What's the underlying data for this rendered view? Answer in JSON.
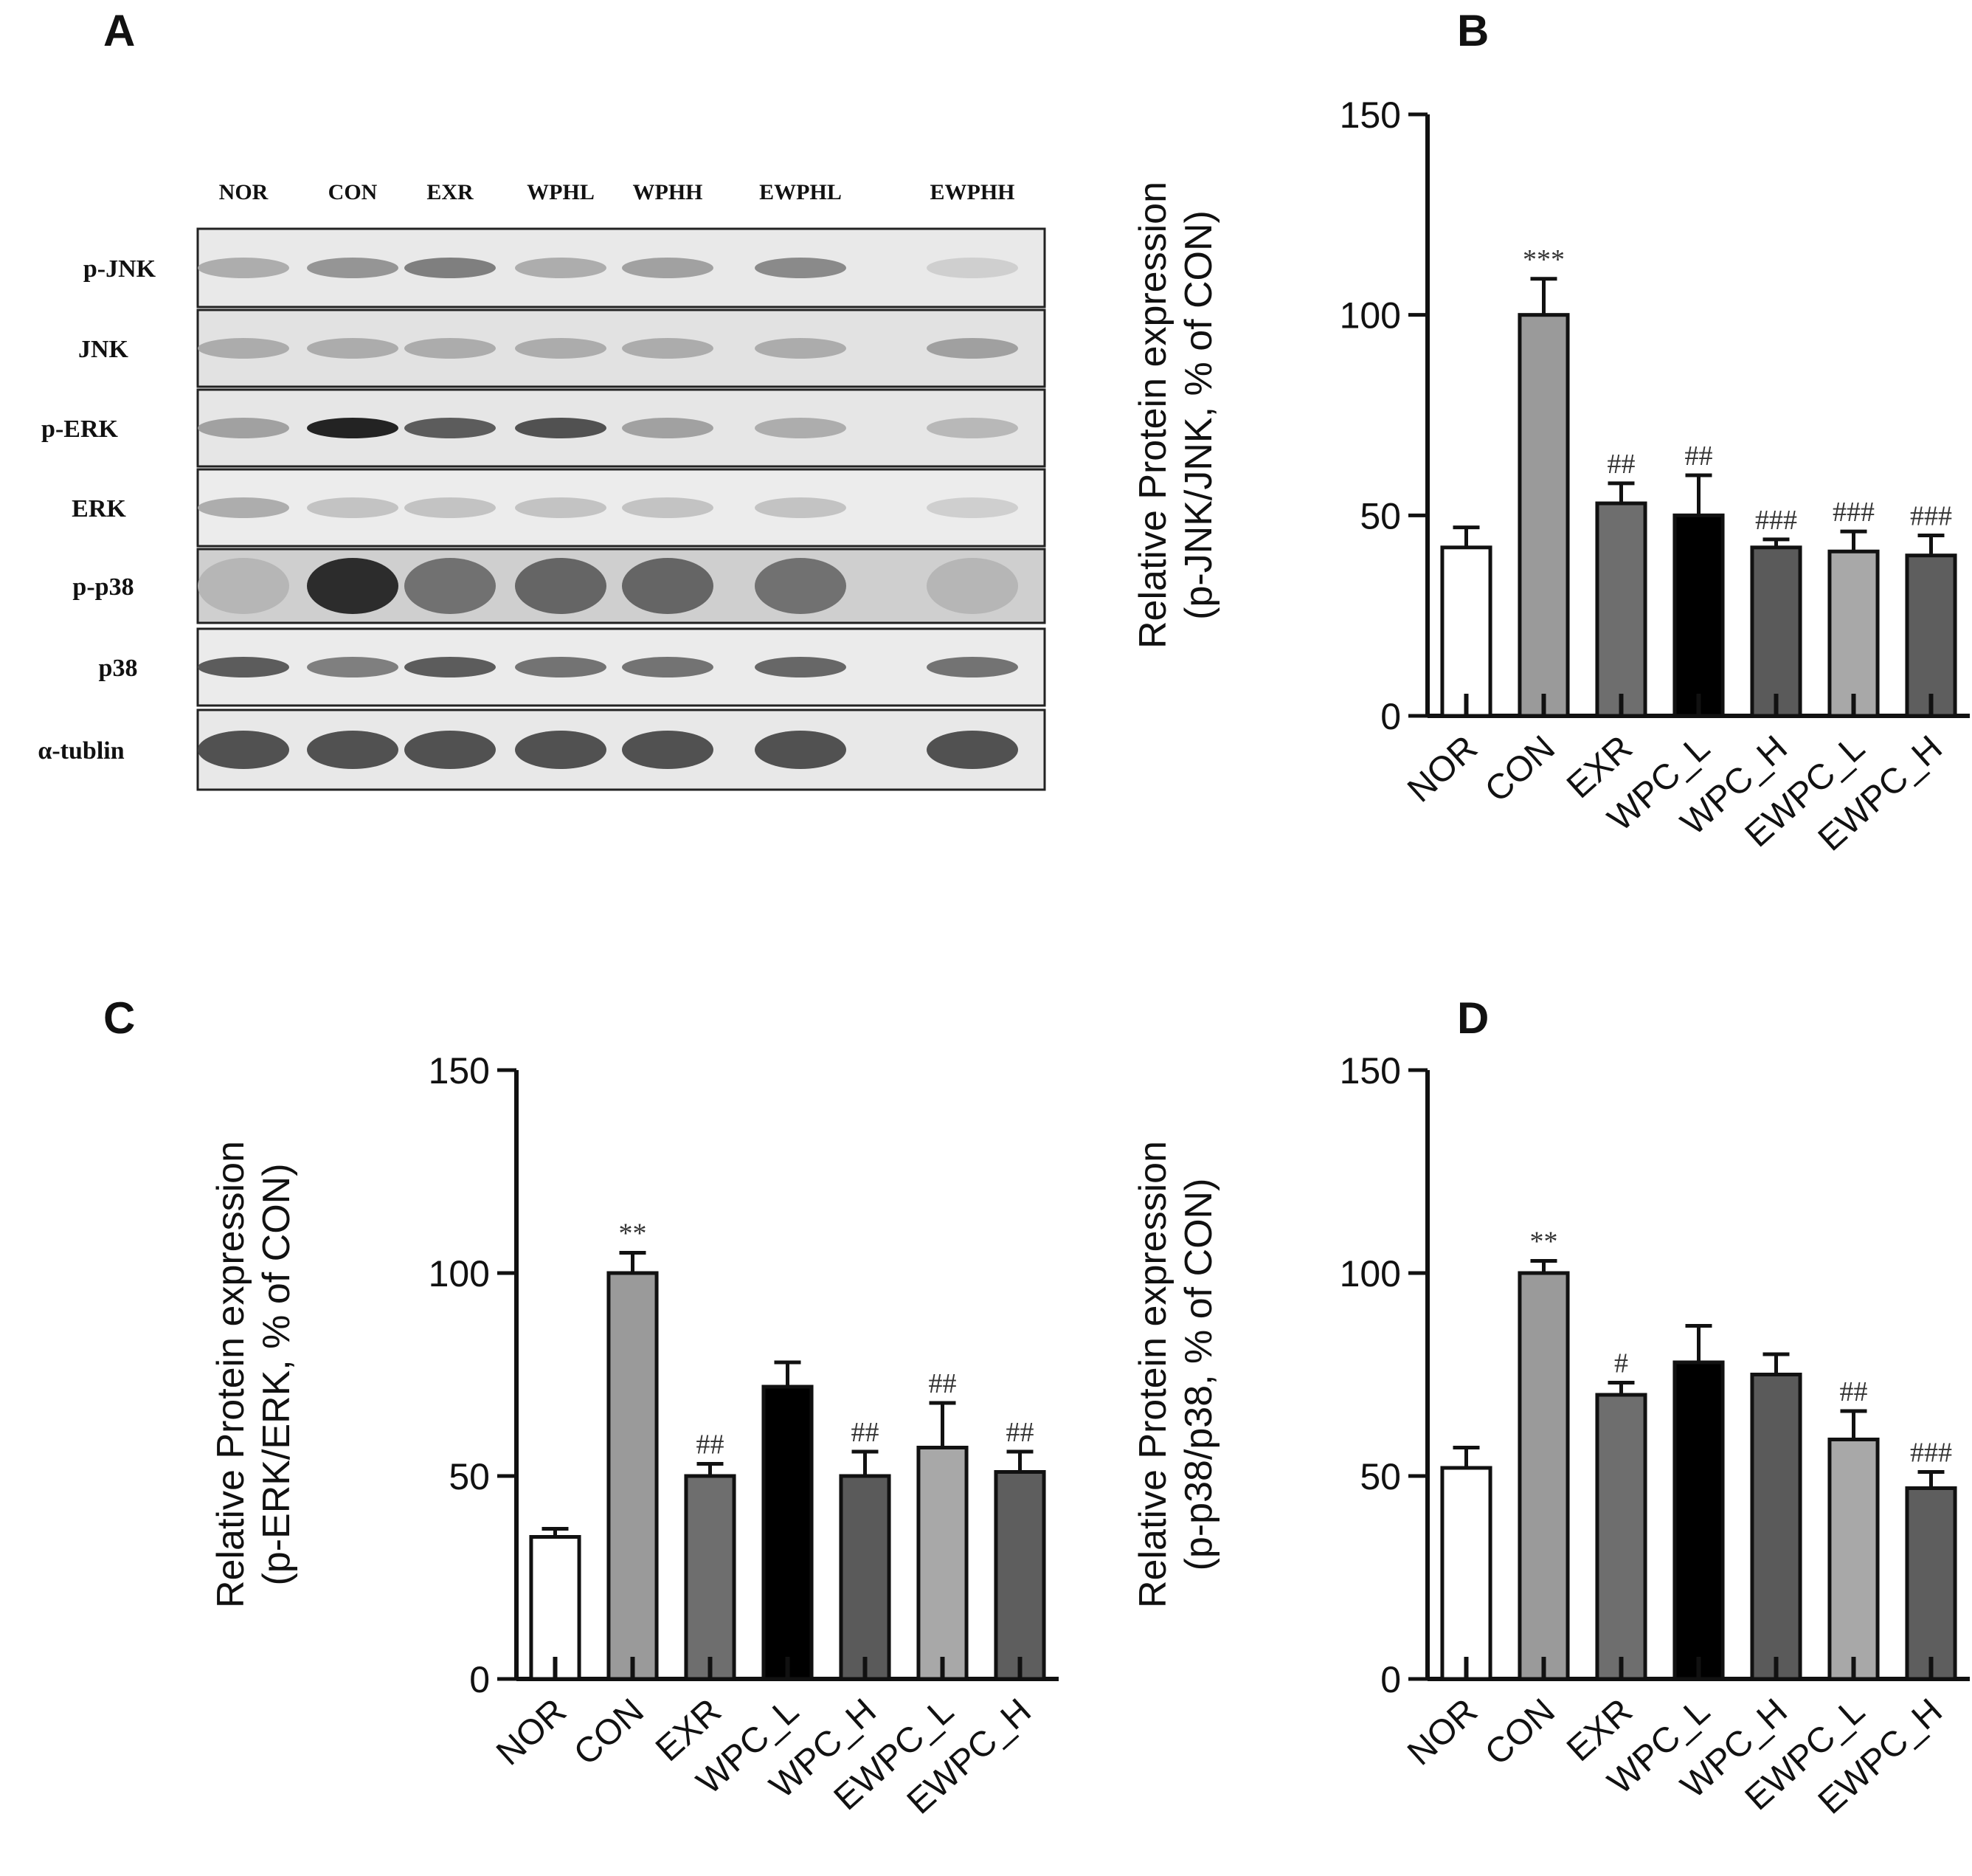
{
  "panels": {
    "a": "A",
    "b": "B",
    "c": "C",
    "d": "D"
  },
  "western_blot": {
    "lanes": [
      "NOR",
      "CON",
      "EXR",
      "WPHL",
      "WPHH",
      "EWPHL",
      "EWPHH"
    ],
    "rows": [
      "p-JNK",
      "JNK",
      "p-ERK",
      "ERK",
      "p-p38",
      "p38",
      "α-tublin"
    ]
  },
  "chart_data": [
    {
      "panel": "B",
      "type": "bar",
      "categories": [
        "NOR",
        "CON",
        "EXR",
        "WPC_L",
        "WPC_H",
        "EWPC_L",
        "EWPC_H"
      ],
      "values": [
        42,
        100,
        53,
        50,
        42,
        41,
        40
      ],
      "errors": [
        5,
        9,
        5,
        10,
        2,
        5,
        5
      ],
      "significance": [
        "",
        "***",
        "##",
        "##",
        "###",
        "###",
        "###"
      ],
      "fills": [
        "#ffffff",
        "#9a9a9a",
        "#6e6e6e",
        "#000000",
        "#5a5a5a",
        "#a8a8a8",
        "#5e5e5e"
      ],
      "ylabel_line1": "Relative Protein expression",
      "ylabel_line2": "(p-JNK/JNK, % of CON)",
      "ylim": [
        0,
        150
      ],
      "yticks": [
        "0",
        "50",
        "100",
        "150"
      ]
    },
    {
      "panel": "C",
      "type": "bar",
      "categories": [
        "NOR",
        "CON",
        "EXR",
        "WPC_L",
        "WPC_H",
        "EWPC_L",
        "EWPC_H"
      ],
      "values": [
        35,
        100,
        50,
        72,
        50,
        57,
        51
      ],
      "errors": [
        2,
        5,
        3,
        6,
        6,
        11,
        5
      ],
      "significance": [
        "",
        "**",
        "##",
        "",
        "##",
        "##",
        "##"
      ],
      "fills": [
        "#ffffff",
        "#9a9a9a",
        "#6e6e6e",
        "#000000",
        "#5a5a5a",
        "#a8a8a8",
        "#5e5e5e"
      ],
      "ylabel_line1": "Relative Protein expression",
      "ylabel_line2": "(p-ERK/ERK, % of CON)",
      "ylim": [
        0,
        150
      ],
      "yticks": [
        "0",
        "50",
        "100",
        "150"
      ]
    },
    {
      "panel": "D",
      "type": "bar",
      "categories": [
        "NOR",
        "CON",
        "EXR",
        "WPC_L",
        "WPC_H",
        "EWPC_L",
        "EWPC_H"
      ],
      "values": [
        52,
        100,
        70,
        78,
        75,
        59,
        47
      ],
      "errors": [
        5,
        3,
        3,
        9,
        5,
        7,
        4
      ],
      "significance": [
        "",
        "**",
        "#",
        "",
        "",
        "##",
        "###"
      ],
      "fills": [
        "#ffffff",
        "#9a9a9a",
        "#6e6e6e",
        "#000000",
        "#5a5a5a",
        "#a8a8a8",
        "#5e5e5e"
      ],
      "ylabel_line1": "Relative Protein expression",
      "ylabel_line2": "(p-p38/p38, % of CON)",
      "ylim": [
        0,
        150
      ],
      "yticks": [
        "0",
        "50",
        "100",
        "150"
      ]
    }
  ]
}
